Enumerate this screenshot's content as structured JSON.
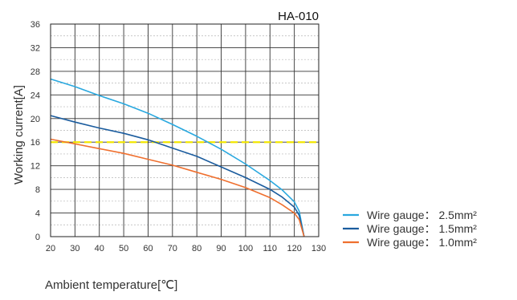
{
  "chart_data": {
    "type": "line",
    "title": "HA-010",
    "xlabel": "Ambient temperature[℃]",
    "ylabel": "Working current[A]",
    "xlim": [
      20,
      130
    ],
    "ylim": [
      0,
      36
    ],
    "xticks": [
      20,
      30,
      40,
      50,
      60,
      70,
      80,
      90,
      100,
      110,
      120,
      130
    ],
    "yticks": [
      0,
      4,
      8,
      12,
      16,
      20,
      24,
      28,
      32,
      36
    ],
    "grid": true,
    "legend_position": "right",
    "series": [
      {
        "name": "Wire gauge： 2.5mm²",
        "color": "#29a8df",
        "x": [
          20,
          30,
          40,
          50,
          60,
          70,
          80,
          90,
          100,
          110,
          115,
          120,
          122,
          124
        ],
        "y": [
          26.7,
          25.4,
          23.9,
          22.5,
          20.9,
          19.0,
          17.0,
          14.8,
          12.3,
          9.5,
          7.9,
          5.9,
          4.3,
          0
        ]
      },
      {
        "name": "Wire gauge： 1.5mm²",
        "color": "#1b5c9e",
        "x": [
          20,
          30,
          40,
          50,
          60,
          70,
          80,
          90,
          100,
          110,
          115,
          120,
          122,
          124
        ],
        "y": [
          20.5,
          19.4,
          18.4,
          17.5,
          16.4,
          15.0,
          13.6,
          11.8,
          10.0,
          8.0,
          6.7,
          5.0,
          3.6,
          0
        ]
      },
      {
        "name": "Wire gauge： 1.0mm²",
        "color": "#ef6f2e",
        "x": [
          20,
          30,
          40,
          50,
          60,
          70,
          80,
          90,
          100,
          110,
          115,
          120,
          122,
          124
        ],
        "y": [
          16.5,
          15.7,
          14.9,
          14.1,
          13.1,
          12.1,
          10.9,
          9.7,
          8.3,
          6.6,
          5.4,
          4.0,
          2.9,
          0
        ]
      }
    ],
    "reference_line": {
      "y": 16,
      "color": "#f2e600"
    }
  }
}
